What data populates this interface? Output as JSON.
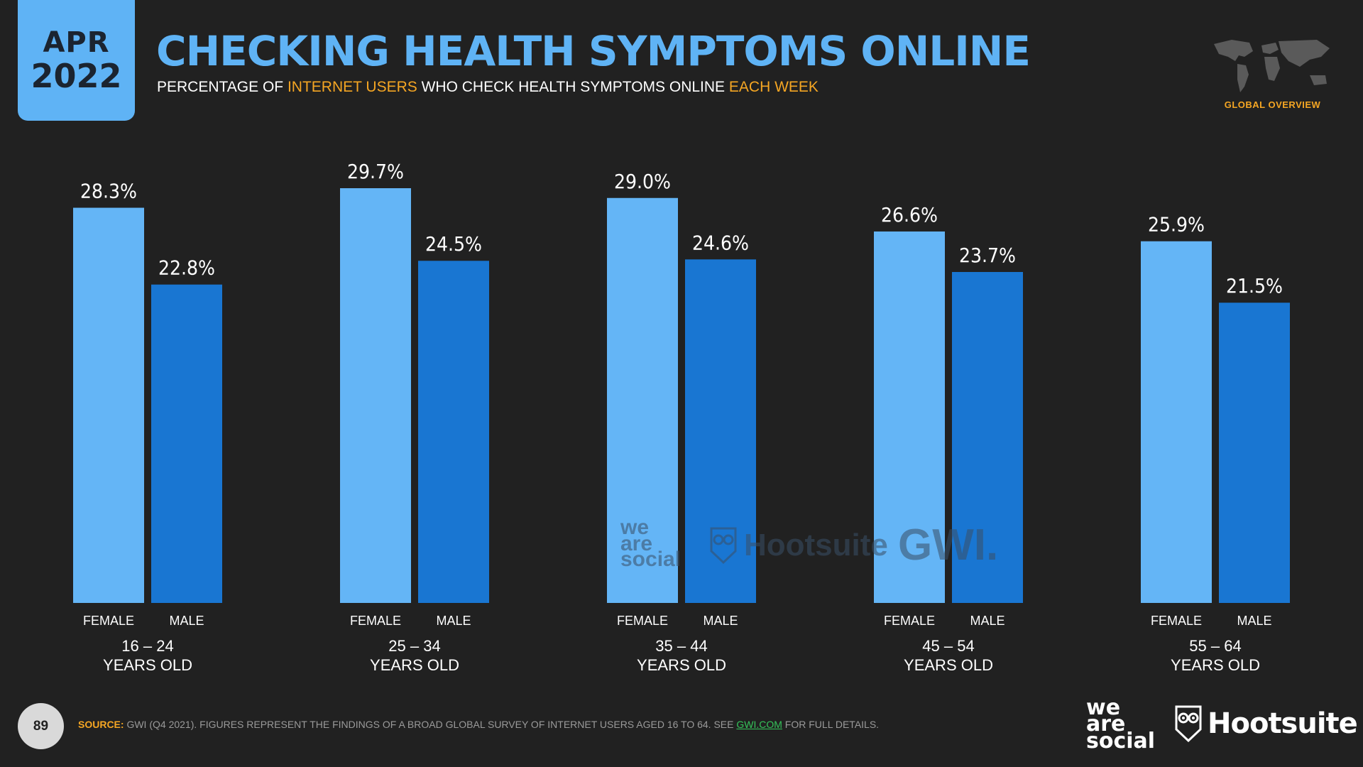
{
  "badge": {
    "month": "APR",
    "year": "2022"
  },
  "title": "CHECKING HEALTH SYMPTOMS ONLINE",
  "subtitle": {
    "part1": "PERCENTAGE OF ",
    "part2": "INTERNET USERS",
    "part3": " WHO CHECK HEALTH SYMPTOMS ONLINE ",
    "part4": "EACH WEEK"
  },
  "overview_label": "GLOBAL OVERVIEW",
  "chart_data": {
    "type": "bar",
    "categories": [
      "16 – 24",
      "25 – 34",
      "35 – 44",
      "45 – 54",
      "55 – 64"
    ],
    "category_sublabel": "YEARS OLD",
    "series": [
      {
        "name": "FEMALE",
        "values": [
          28.3,
          29.7,
          29.0,
          26.6,
          25.9
        ],
        "color": "#64b5f6"
      },
      {
        "name": "MALE",
        "values": [
          22.8,
          24.5,
          24.6,
          23.7,
          21.5
        ],
        "color": "#1976d2"
      }
    ],
    "value_labels": [
      [
        "28.3%",
        "22.8%"
      ],
      [
        "29.7%",
        "24.5%"
      ],
      [
        "29.0%",
        "24.6%"
      ],
      [
        "26.6%",
        "23.7%"
      ],
      [
        "25.9%",
        "21.5%"
      ]
    ],
    "ylim": [
      0,
      29.7
    ],
    "grid": false,
    "legend": "none"
  },
  "watermarks": {
    "we_are_social": "we\nare\nsocial",
    "hootsuite": "Hootsuite",
    "gwi": "GWI."
  },
  "footer": {
    "page_number": "89",
    "source_label": "SOURCE:",
    "source_text": " GWI (Q4 2021). FIGURES REPRESENT THE FINDINGS OF A BROAD GLOBAL SURVEY OF INTERNET USERS AGED 16 TO 64. SEE ",
    "source_link": "GWI.COM",
    "source_end": " FOR FULL DETAILS.",
    "logo_ws": [
      "we",
      "are",
      "social"
    ],
    "logo_hs": "Hootsuite"
  },
  "colors": {
    "accent": "#5fb3f5",
    "orange": "#f5a623",
    "female": "#64b5f6",
    "male": "#1976d2"
  }
}
